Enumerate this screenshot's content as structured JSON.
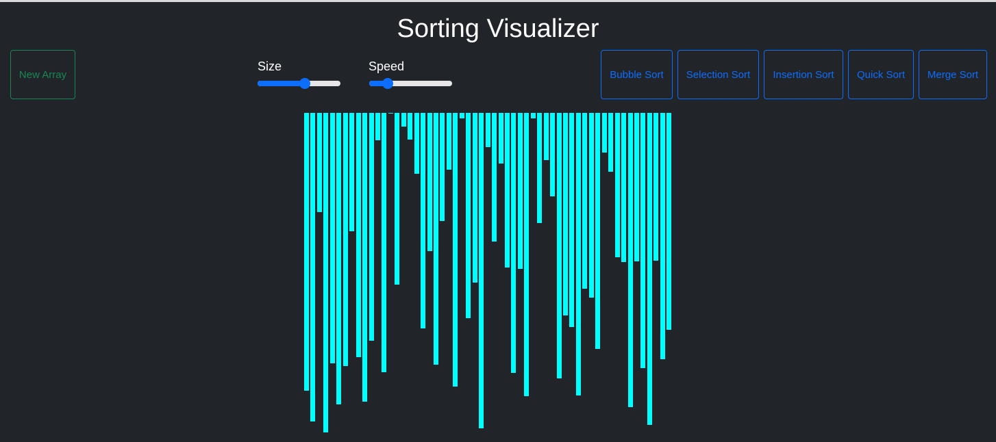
{
  "app": {
    "title": "Sorting Visualizer"
  },
  "controls": {
    "new_array_label": "New Array",
    "size": {
      "label": "Size",
      "value": 0.58
    },
    "speed": {
      "label": "Speed",
      "value": 0.18
    },
    "sort_buttons": [
      {
        "label": "Bubble Sort"
      },
      {
        "label": "Selection Sort"
      },
      {
        "label": "Insertion Sort"
      },
      {
        "label": "Quick Sort"
      },
      {
        "label": "Merge Sort"
      }
    ]
  },
  "colors": {
    "background": "#212529",
    "bar": "#00ffff",
    "accent_blue": "#0d6efd",
    "accent_green": "#198754"
  },
  "array_values": [
    406,
    451,
    145,
    467,
    366,
    426,
    370,
    173,
    357,
    422,
    333,
    40,
    379,
    1,
    251,
    20,
    39,
    89,
    315,
    202,
    368,
    158,
    83,
    400,
    8,
    300,
    248,
    461,
    50,
    188,
    74,
    226,
    380,
    228,
    414,
    8,
    161,
    69,
    122,
    388,
    296,
    313,
    413,
    257,
    270,
    345,
    58,
    86,
    211,
    218,
    430,
    217,
    373,
    456,
    216,
    360,
    317
  ]
}
